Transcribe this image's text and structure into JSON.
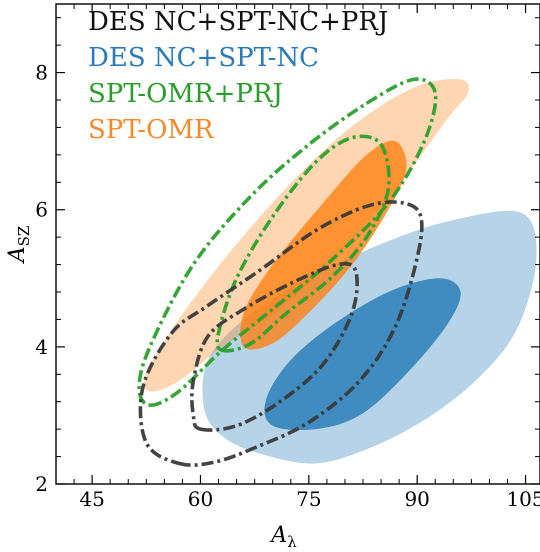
{
  "chart_data": {
    "type": "contour",
    "xlabel": {
      "main": "A",
      "sub": "λ"
    },
    "ylabel": {
      "main": "A",
      "sub": "SZ"
    },
    "xlim": [
      40,
      107
    ],
    "ylim": [
      2,
      9
    ],
    "xticks": [
      45,
      60,
      75,
      90,
      105
    ],
    "yticks": [
      2,
      4,
      6,
      8
    ],
    "grid": false,
    "legend_position": "top-left",
    "series": [
      {
        "name": "DES NC+SPT-NC+PRJ",
        "style": "dash-dot",
        "color": "#3a3a3a",
        "contours": [
          {
            "level": "95%",
            "points": [
              [
                57,
                2.3
              ],
              [
                62,
                2.32
              ],
              [
                68,
                2.55
              ],
              [
                75,
                2.9
              ],
              [
                82,
                3.5
              ],
              [
                87,
                4.3
              ],
              [
                90,
                5.3
              ],
              [
                90.5,
                5.9
              ],
              [
                88,
                6.1
              ],
              [
                83,
                6.05
              ],
              [
                76,
                5.7
              ],
              [
                68,
                5.1
              ],
              [
                61,
                4.6
              ],
              [
                56,
                4.2
              ],
              [
                52,
                3.4
              ],
              [
                52.5,
                2.6
              ]
            ]
          },
          {
            "level": "68%",
            "points": [
              [
                60,
                2.8
              ],
              [
                65,
                2.85
              ],
              [
                71,
                3.2
              ],
              [
                77,
                3.75
              ],
              [
                81,
                4.5
              ],
              [
                81.5,
                5.1
              ],
              [
                79,
                5.2
              ],
              [
                73,
                4.95
              ],
              [
                66,
                4.55
              ],
              [
                61,
                4.15
              ],
              [
                59,
                3.5
              ],
              [
                59,
                3.0
              ]
            ]
          }
        ]
      },
      {
        "name": "DES NC+SPT-NC",
        "color": "#1f77b4",
        "contours": [
          {
            "level": "95%",
            "points": [
              [
                63,
                2.7
              ],
              [
                68,
                2.45
              ],
              [
                76,
                2.3
              ],
              [
                84,
                2.55
              ],
              [
                92,
                3.0
              ],
              [
                99,
                3.6
              ],
              [
                104,
                4.3
              ],
              [
                106.5,
                5.3
              ],
              [
                104.5,
                5.95
              ],
              [
                95,
                5.85
              ],
              [
                85,
                5.5
              ],
              [
                74,
                4.95
              ],
              [
                66,
                4.4
              ],
              [
                61,
                3.8
              ],
              [
                60.5,
                3.1
              ]
            ]
          },
          {
            "level": "68%",
            "points": [
              [
                70,
                2.85
              ],
              [
                76,
                2.8
              ],
              [
                82,
                3.0
              ],
              [
                88,
                3.55
              ],
              [
                94,
                4.3
              ],
              [
                96,
                4.8
              ],
              [
                93,
                5.0
              ],
              [
                86,
                4.8
              ],
              [
                78,
                4.3
              ],
              [
                72,
                3.75
              ],
              [
                69,
                3.2
              ]
            ]
          }
        ]
      },
      {
        "name": "SPT-OMR+PRJ",
        "style": "dash-dot",
        "color": "#2ca02c",
        "contours": [
          {
            "level": "95%",
            "points": [
              [
                53,
                3.15
              ],
              [
                57,
                3.35
              ],
              [
                63,
                3.95
              ],
              [
                70,
                4.55
              ],
              [
                78,
                5.25
              ],
              [
                86,
                6.1
              ],
              [
                91,
                7.0
              ],
              [
                92.5,
                7.7
              ],
              [
                89.5,
                7.9
              ],
              [
                83,
                7.55
              ],
              [
                75,
                6.95
              ],
              [
                67,
                6.2
              ],
              [
                59,
                5.2
              ],
              [
                53,
                4.0
              ],
              [
                51.5,
                3.4
              ]
            ]
          },
          {
            "level": "68%",
            "points": [
              [
                63,
                3.95
              ],
              [
                67,
                4.05
              ],
              [
                72,
                4.5
              ],
              [
                78,
                5.0
              ],
              [
                83,
                5.6
              ],
              [
                86,
                6.3
              ],
              [
                85,
                6.95
              ],
              [
                81,
                7.05
              ],
              [
                76,
                6.7
              ],
              [
                70,
                5.9
              ],
              [
                65,
                5.0
              ],
              [
                62.5,
                4.2
              ]
            ]
          }
        ]
      },
      {
        "name": "SPT-OMR",
        "color": "#ff7f0e",
        "contours": [
          {
            "level": "95%",
            "points": [
              [
                53,
                3.35
              ],
              [
                57,
                3.5
              ],
              [
                63,
                4.0
              ],
              [
                71,
                4.55
              ],
              [
                79,
                5.35
              ],
              [
                87,
                6.3
              ],
              [
                94,
                7.3
              ],
              [
                97,
                7.7
              ],
              [
                96,
                7.9
              ],
              [
                90,
                7.8
              ],
              [
                82,
                7.3
              ],
              [
                74,
                6.55
              ],
              [
                65,
                5.5
              ],
              [
                57,
                4.4
              ],
              [
                52.5,
                3.6
              ]
            ]
          },
          {
            "level": "68%",
            "points": [
              [
                66,
                4.0
              ],
              [
                70,
                4.05
              ],
              [
                75,
                4.5
              ],
              [
                81,
                5.2
              ],
              [
                86,
                6.0
              ],
              [
                88.5,
                6.6
              ],
              [
                87,
                7.0
              ],
              [
                83,
                6.8
              ],
              [
                77,
                6.1
              ],
              [
                70,
                5.2
              ],
              [
                66,
                4.5
              ]
            ]
          }
        ]
      }
    ]
  },
  "legend": {
    "items": [
      {
        "label": "DES NC+SPT-NC+PRJ",
        "color": "#111111"
      },
      {
        "label": "DES NC+SPT-NC",
        "color": "#2b7bba"
      },
      {
        "label": "SPT-OMR+PRJ",
        "color": "#2a9d2a"
      },
      {
        "label": "SPT-OMR",
        "color": "#f58a2a"
      }
    ]
  }
}
